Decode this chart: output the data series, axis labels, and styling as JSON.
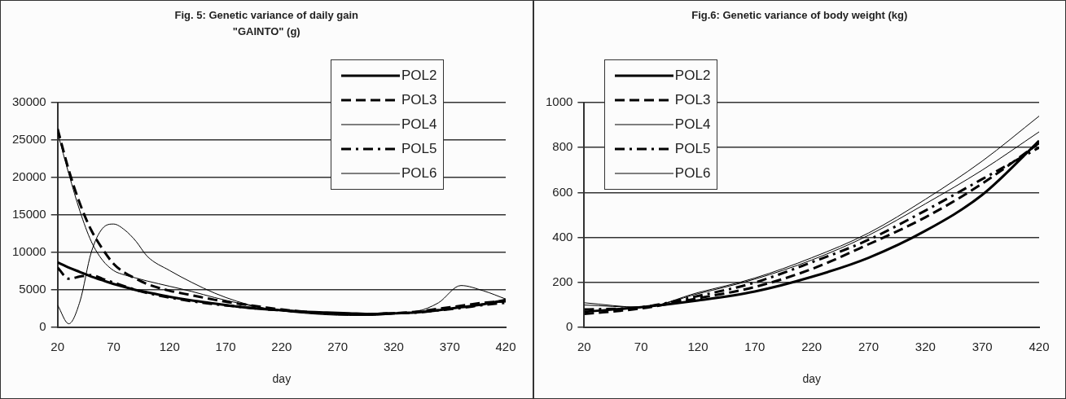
{
  "chart_data": [
    {
      "type": "line",
      "title": "Fig. 5: Genetic variance of daily gain \"GAINTO\" (g)",
      "xlabel": "day",
      "legend": "top right",
      "grid": "y",
      "marker": "none",
      "xlim": [
        20,
        420
      ],
      "xticks": [
        20,
        70,
        120,
        170,
        220,
        270,
        320,
        370,
        420
      ],
      "ylim": [
        0,
        30000
      ],
      "yticks": [
        0,
        5000,
        10000,
        15000,
        20000,
        25000,
        30000
      ],
      "x": [
        20,
        30,
        40,
        50,
        60,
        70,
        80,
        90,
        100,
        120,
        140,
        160,
        180,
        200,
        220,
        240,
        260,
        280,
        300,
        320,
        340,
        360,
        380,
        400,
        420
      ],
      "series": [
        {
          "name": "POL2",
          "color": "#000000",
          "line_style": "solid",
          "values": [
            8700,
            8000,
            7400,
            6800,
            6300,
            5800,
            5400,
            5000,
            4700,
            4100,
            3600,
            3200,
            2800,
            2500,
            2300,
            2100,
            2000,
            1900,
            1800,
            1900,
            2000,
            2300,
            2700,
            3100,
            3600
          ]
        },
        {
          "name": "POL3",
          "color": "#000000",
          "line_style": "dashed",
          "values": [
            26500,
            21000,
            16500,
            13000,
            10500,
            8500,
            7300,
            6500,
            5800,
            4900,
            4300,
            3700,
            3200,
            2800,
            2400,
            2100,
            1900,
            1800,
            1800,
            1900,
            2100,
            2500,
            2900,
            3300,
            3500
          ]
        },
        {
          "name": "POL4",
          "color": "#000000",
          "line_style": "solid",
          "values": [
            26000,
            20500,
            15500,
            11500,
            9000,
            7600,
            7000,
            6600,
            6200,
            5500,
            4800,
            4000,
            3300,
            2700,
            2300,
            2000,
            1800,
            1700,
            1700,
            1800,
            2000,
            2300,
            2700,
            3200,
            3800
          ]
        },
        {
          "name": "POL5",
          "color": "#000000",
          "line_style": "dotted",
          "values": [
            8000,
            6500,
            6800,
            7000,
            6500,
            6000,
            5500,
            5000,
            4600,
            4000,
            3500,
            3100,
            2800,
            2500,
            2300,
            2100,
            1900,
            1800,
            1800,
            1900,
            2000,
            2300,
            2600,
            3000,
            3300
          ]
        },
        {
          "name": "POL6",
          "color": "#000000",
          "line_style": "solid",
          "values": [
            3000,
            500,
            3500,
            10000,
            13200,
            13800,
            13000,
            11500,
            9500,
            7600,
            6000,
            4600,
            3500,
            2700,
            2200,
            1900,
            1700,
            1600,
            1600,
            1800,
            2100,
            3300,
            5600,
            4900,
            3800
          ]
        }
      ]
    },
    {
      "type": "line",
      "title": "Fig.6: Genetic variance of body weight (kg)",
      "xlabel": "day",
      "legend": "top left",
      "grid": "y",
      "marker": "none",
      "xlim": [
        20,
        420
      ],
      "xticks": [
        20,
        70,
        120,
        170,
        220,
        270,
        320,
        370,
        420
      ],
      "ylim": [
        0,
        1000
      ],
      "yticks": [
        0,
        200,
        400,
        600,
        800,
        1000
      ],
      "x": [
        20,
        70,
        120,
        170,
        220,
        270,
        320,
        370,
        420
      ],
      "series": [
        {
          "name": "POL2",
          "color": "#000000",
          "line_style": "solid",
          "values": [
            70,
            90,
            120,
            160,
            225,
            310,
            430,
            590,
            830
          ]
        },
        {
          "name": "POL3",
          "color": "#000000",
          "line_style": "dashed",
          "values": [
            60,
            85,
            130,
            180,
            260,
            370,
            490,
            640,
            820
          ]
        },
        {
          "name": "POL4",
          "color": "#000000",
          "line_style": "solid",
          "values": [
            100,
            90,
            150,
            215,
            300,
            410,
            550,
            700,
            870
          ]
        },
        {
          "name": "POL5",
          "color": "#000000",
          "line_style": "dotted",
          "values": [
            80,
            90,
            140,
            200,
            290,
            390,
            520,
            660,
            800
          ]
        },
        {
          "name": "POL6",
          "color": "#000000",
          "line_style": "solid",
          "values": [
            110,
            90,
            155,
            220,
            310,
            420,
            570,
            740,
            940
          ]
        }
      ]
    }
  ]
}
